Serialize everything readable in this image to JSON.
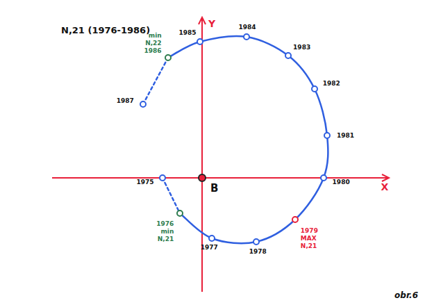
{
  "chart_data": {
    "type": "line",
    "title": "N,21 (1976-1986)",
    "x_label": "X",
    "y_label": "Y",
    "origin_label": "B",
    "footnote": "obr.6",
    "xlim": [
      -21.6,
      26.9
    ],
    "ylim": [
      -16.4,
      23.1
    ],
    "tick_labels": false,
    "grid": false,
    "series": [
      {
        "color": "#2f5fe0",
        "marker": "circle",
        "line_style": "solid",
        "x": [
          -5.7,
          -3.2,
          1.4,
          7.8,
          13.4,
          17.5,
          18.0,
          16.2,
          12.4,
          6.4,
          -0.3,
          -4.9,
          -8.5
        ],
        "values": [
          0,
          -5.1,
          -8.7,
          -9.2,
          -6.0,
          0,
          6.1,
          12.8,
          17.6,
          20.3,
          19.6,
          17.3,
          10.6
        ],
        "point_labels": [
          "1975",
          "1976",
          "1977",
          "1978",
          "1979",
          "1980",
          "1981",
          "1982",
          "1983",
          "1984",
          "1985",
          "1986",
          "1987"
        ],
        "colors": [
          "#2f5fe0",
          "#2e7d4f",
          "#2f5fe0",
          "#2f5fe0",
          "#e8203a",
          "#2f5fe0",
          "#2f5fe0",
          "#2f5fe0",
          "#2f5fe0",
          "#2f5fe0",
          "#2f5fe0",
          "#2e7d4f",
          "#2f5fe0"
        ]
      }
    ],
    "annotations": [
      {
        "point": 1,
        "color": "#2e7d4f",
        "lines": [
          "min",
          "N,21"
        ]
      },
      {
        "point": 4,
        "color": "#e8203a",
        "lines": [
          "MAX",
          "N,21"
        ]
      },
      {
        "point": 11,
        "color": "#2e7d4f",
        "lines": [
          "min",
          "N,22"
        ]
      }
    ]
  }
}
